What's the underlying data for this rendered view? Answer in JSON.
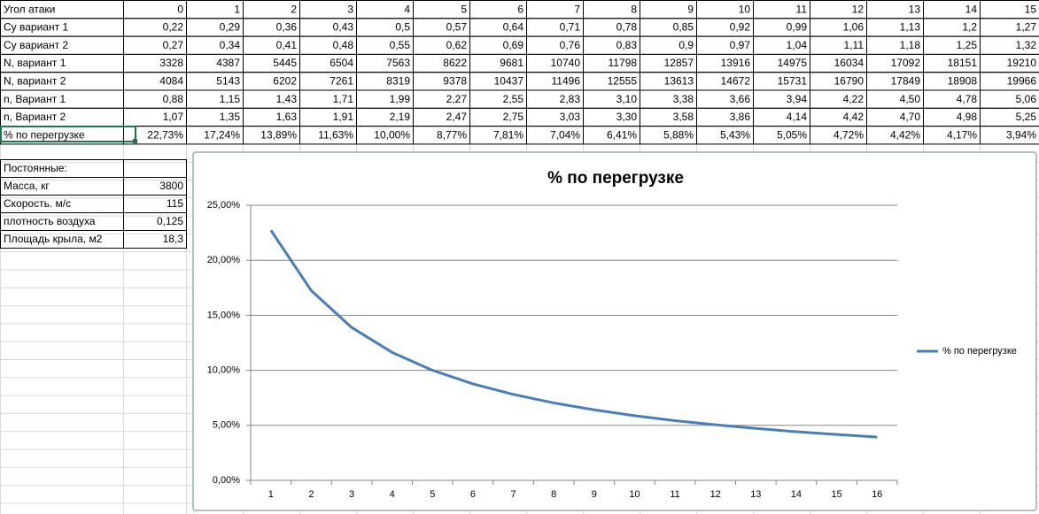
{
  "table": {
    "rows": [
      [
        "Угол атаки",
        "0",
        "1",
        "2",
        "3",
        "4",
        "5",
        "6",
        "7",
        "8",
        "9",
        "10",
        "11",
        "12",
        "13",
        "14",
        "15"
      ],
      [
        "Cy вариант 1",
        "0,22",
        "0,29",
        "0,36",
        "0,43",
        "0,5",
        "0,57",
        "0,64",
        "0,71",
        "0,78",
        "0,85",
        "0,92",
        "0,99",
        "1,06",
        "1,13",
        "1,2",
        "1,27"
      ],
      [
        "Cy вариант 2",
        "0,27",
        "0,34",
        "0,41",
        "0,48",
        "0,55",
        "0,62",
        "0,69",
        "0,76",
        "0,83",
        "0,9",
        "0,97",
        "1,04",
        "1,11",
        "1,18",
        "1,25",
        "1,32"
      ],
      [
        "N, вариант 1",
        "3328",
        "4387",
        "5445",
        "6504",
        "7563",
        "8622",
        "9681",
        "10740",
        "11798",
        "12857",
        "13916",
        "14975",
        "16034",
        "17092",
        "18151",
        "19210"
      ],
      [
        "N, вариант 2",
        "4084",
        "5143",
        "6202",
        "7261",
        "8319",
        "9378",
        "10437",
        "11496",
        "12555",
        "13613",
        "14672",
        "15731",
        "16790",
        "17849",
        "18908",
        "19966"
      ],
      [
        "n, Вариант 1",
        "0,88",
        "1,15",
        "1,43",
        "1,71",
        "1,99",
        "2,27",
        "2,55",
        "2,83",
        "3,10",
        "3,38",
        "3,66",
        "3,94",
        "4,22",
        "4,50",
        "4,78",
        "5,06"
      ],
      [
        "n, Вариант 2",
        "1,07",
        "1,35",
        "1,63",
        "1,91",
        "2,19",
        "2,47",
        "2,75",
        "3,03",
        "3,30",
        "3,58",
        "3,86",
        "4,14",
        "4,42",
        "4,70",
        "4,98",
        "5,25"
      ],
      [
        "% по перегрузке",
        "22,73%",
        "17,24%",
        "13,89%",
        "11,63%",
        "10,00%",
        "8,77%",
        "7,81%",
        "7,04%",
        "6,41%",
        "5,88%",
        "5,43%",
        "5,05%",
        "4,72%",
        "4,42%",
        "4,17%",
        "3,94%"
      ]
    ]
  },
  "constants": {
    "rows": [
      [
        "Постоянные:"
      ],
      [
        "Масса, кг",
        "3800"
      ],
      [
        "Скорость. м/с",
        "115"
      ],
      [
        "плотность воздуха",
        "0,125"
      ],
      [
        "Площадь крыла, м2",
        "18,3"
      ]
    ]
  },
  "chart_data": {
    "type": "line",
    "title": "% по перегрузке",
    "categories": [
      "1",
      "2",
      "3",
      "4",
      "5",
      "6",
      "7",
      "8",
      "9",
      "10",
      "11",
      "12",
      "13",
      "14",
      "15",
      "16"
    ],
    "series": [
      {
        "name": "% по перегрузке",
        "color": "#4a7ebb",
        "values": [
          22.73,
          17.24,
          13.89,
          11.63,
          10.0,
          8.77,
          7.81,
          7.04,
          6.41,
          5.88,
          5.43,
          5.05,
          4.72,
          4.42,
          4.17,
          3.94
        ]
      }
    ],
    "ylim": [
      0,
      25
    ],
    "yticks": [
      {
        "value": 0,
        "label": "0,00%"
      },
      {
        "value": 5,
        "label": "5,00%"
      },
      {
        "value": 10,
        "label": "10,00%"
      },
      {
        "value": 15,
        "label": "15,00%"
      },
      {
        "value": 20,
        "label": "20,00%"
      },
      {
        "value": 25,
        "label": "25,00%"
      }
    ],
    "grid": true,
    "legend": "right"
  }
}
